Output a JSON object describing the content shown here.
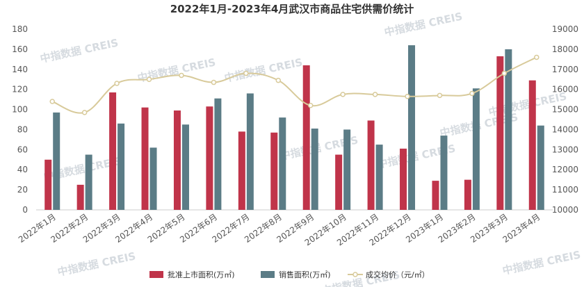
{
  "chart_data": {
    "type": "bar",
    "title": "2022年1月-2023年4月武汉市商品住宅供需价统计",
    "categories": [
      "2022年1月",
      "2022年2月",
      "2022年3月",
      "2022年4月",
      "2022年5月",
      "2022年6月",
      "2022年7月",
      "2022年8月",
      "2022年9月",
      "2022年10月",
      "2022年11月",
      "2022年12月",
      "2023年1月",
      "2023年2月",
      "2023年3月",
      "2023年4月"
    ],
    "series": [
      {
        "name": "批准上市面积(万㎡)",
        "type": "bar",
        "axis": "left",
        "color": "#c0344a",
        "values": [
          50,
          25,
          117,
          102,
          99,
          103,
          78,
          77,
          144,
          55,
          89,
          61,
          29,
          30,
          153,
          129
        ]
      },
      {
        "name": "销售面积(万㎡)",
        "type": "bar",
        "axis": "left",
        "color": "#5b7c86",
        "values": [
          97,
          55,
          86,
          62,
          85,
          111,
          116,
          92,
          81,
          80,
          65,
          164,
          74,
          121,
          160,
          84
        ]
      },
      {
        "name": "成交均价（元/㎡）",
        "type": "line",
        "axis": "right",
        "color": "#d8ca9a",
        "values": [
          15400,
          14850,
          16300,
          16500,
          16700,
          16350,
          16800,
          16450,
          15200,
          15750,
          15750,
          15650,
          15700,
          15800,
          16800,
          17600
        ]
      }
    ],
    "y_left": {
      "min": 0,
      "max": 180,
      "step": 20
    },
    "y_right": {
      "min": 10000,
      "max": 19000,
      "step": 1000
    },
    "legend_position": "bottom",
    "grid": false
  },
  "watermark": "中指数据 CREIS"
}
